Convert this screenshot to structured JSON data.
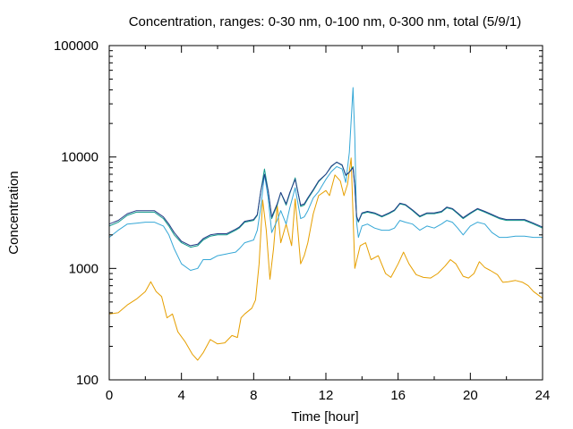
{
  "chart_data": {
    "type": "line",
    "title": "Concentration, ranges: 0-30 nm, 0-100 nm, 0-300 nm, total (5/9/1)",
    "xlabel": "Time [hour]",
    "ylabel": "Concentration",
    "xlim": [
      0,
      24
    ],
    "ylim": [
      100,
      100000
    ],
    "yscale": "log",
    "grid": false,
    "legend": "none",
    "x_ticks": [
      0,
      4,
      8,
      12,
      16,
      20,
      24
    ],
    "x_tick_labels": [
      "0",
      "4",
      "8",
      "12",
      "16",
      "20",
      "24"
    ],
    "y_ticks": [
      100,
      1000,
      10000,
      100000
    ],
    "y_tick_labels": [
      "100",
      "1000",
      "10000",
      "100000"
    ],
    "series": [
      {
        "color": "#e69f00",
        "points": [
          [
            0,
            390
          ],
          [
            0.5,
            400
          ],
          [
            1,
            470
          ],
          [
            1.5,
            530
          ],
          [
            2,
            620
          ],
          [
            2.3,
            760
          ],
          [
            2.6,
            620
          ],
          [
            2.9,
            560
          ],
          [
            3.2,
            360
          ],
          [
            3.5,
            390
          ],
          [
            3.8,
            270
          ],
          [
            4.2,
            220
          ],
          [
            4.6,
            170
          ],
          [
            4.9,
            150
          ],
          [
            5.2,
            175
          ],
          [
            5.6,
            230
          ],
          [
            6,
            210
          ],
          [
            6.4,
            215
          ],
          [
            6.8,
            250
          ],
          [
            7.1,
            240
          ],
          [
            7.3,
            360
          ],
          [
            7.5,
            390
          ],
          [
            7.9,
            440
          ],
          [
            8.1,
            520
          ],
          [
            8.3,
            1100
          ],
          [
            8.5,
            4100
          ],
          [
            8.7,
            2200
          ],
          [
            8.9,
            800
          ],
          [
            9.1,
            1500
          ],
          [
            9.3,
            3700
          ],
          [
            9.5,
            1700
          ],
          [
            9.8,
            2500
          ],
          [
            10.1,
            1600
          ],
          [
            10.3,
            4200
          ],
          [
            10.6,
            1100
          ],
          [
            10.8,
            1300
          ],
          [
            11,
            1700
          ],
          [
            11.3,
            3100
          ],
          [
            11.6,
            4500
          ],
          [
            12,
            5000
          ],
          [
            12.2,
            4500
          ],
          [
            12.5,
            6900
          ],
          [
            12.8,
            6100
          ],
          [
            13,
            4500
          ],
          [
            13.2,
            5700
          ],
          [
            13.4,
            9800
          ],
          [
            13.6,
            1000
          ],
          [
            13.9,
            1600
          ],
          [
            14.2,
            1700
          ],
          [
            14.5,
            1200
          ],
          [
            14.9,
            1300
          ],
          [
            15.3,
            900
          ],
          [
            15.6,
            830
          ],
          [
            16,
            1100
          ],
          [
            16.3,
            1400
          ],
          [
            16.6,
            1100
          ],
          [
            17,
            880
          ],
          [
            17.4,
            830
          ],
          [
            17.8,
            820
          ],
          [
            18.2,
            900
          ],
          [
            18.6,
            1050
          ],
          [
            18.9,
            1200
          ],
          [
            19.2,
            1100
          ],
          [
            19.6,
            850
          ],
          [
            19.9,
            820
          ],
          [
            20.2,
            900
          ],
          [
            20.5,
            1150
          ],
          [
            20.8,
            1020
          ],
          [
            21.1,
            960
          ],
          [
            21.5,
            880
          ],
          [
            21.8,
            750
          ],
          [
            22.1,
            760
          ],
          [
            22.5,
            780
          ],
          [
            22.9,
            750
          ],
          [
            23.2,
            700
          ],
          [
            23.5,
            620
          ],
          [
            24,
            540
          ]
        ]
      },
      {
        "color": "#35a7d6",
        "points": [
          [
            0,
            1900
          ],
          [
            0.5,
            2200
          ],
          [
            1,
            2500
          ],
          [
            1.5,
            2550
          ],
          [
            2,
            2600
          ],
          [
            2.5,
            2600
          ],
          [
            3,
            2400
          ],
          [
            3.3,
            2000
          ],
          [
            3.6,
            1500
          ],
          [
            4,
            1100
          ],
          [
            4.5,
            960
          ],
          [
            4.9,
            1000
          ],
          [
            5.2,
            1200
          ],
          [
            5.6,
            1200
          ],
          [
            6,
            1300
          ],
          [
            6.5,
            1350
          ],
          [
            7,
            1400
          ],
          [
            7.2,
            1500
          ],
          [
            7.5,
            1700
          ],
          [
            8,
            1800
          ],
          [
            8.2,
            2200
          ],
          [
            8.4,
            3600
          ],
          [
            8.6,
            7000
          ],
          [
            8.8,
            4300
          ],
          [
            9,
            2100
          ],
          [
            9.3,
            2700
          ],
          [
            9.5,
            3300
          ],
          [
            9.8,
            2500
          ],
          [
            10,
            3500
          ],
          [
            10.3,
            5300
          ],
          [
            10.6,
            2800
          ],
          [
            10.8,
            2900
          ],
          [
            11,
            3300
          ],
          [
            11.3,
            4300
          ],
          [
            11.6,
            4900
          ],
          [
            12,
            6300
          ],
          [
            12.3,
            7400
          ],
          [
            12.6,
            8200
          ],
          [
            12.9,
            7800
          ],
          [
            13.1,
            5900
          ],
          [
            13.3,
            11000
          ],
          [
            13.5,
            42000
          ],
          [
            13.6,
            15000
          ],
          [
            13.7,
            2600
          ],
          [
            13.8,
            1900
          ],
          [
            14,
            2400
          ],
          [
            14.3,
            2500
          ],
          [
            14.7,
            2300
          ],
          [
            15.1,
            2200
          ],
          [
            15.5,
            2200
          ],
          [
            15.8,
            2300
          ],
          [
            16.1,
            2700
          ],
          [
            16.4,
            2600
          ],
          [
            16.8,
            2500
          ],
          [
            17.2,
            2200
          ],
          [
            17.6,
            2400
          ],
          [
            18,
            2300
          ],
          [
            18.4,
            2500
          ],
          [
            18.7,
            2700
          ],
          [
            19,
            2600
          ],
          [
            19.3,
            2300
          ],
          [
            19.6,
            2000
          ],
          [
            20,
            2400
          ],
          [
            20.4,
            2600
          ],
          [
            20.8,
            2500
          ],
          [
            21.2,
            2100
          ],
          [
            21.6,
            1900
          ],
          [
            22,
            1900
          ],
          [
            22.5,
            1950
          ],
          [
            23,
            1950
          ],
          [
            23.5,
            1900
          ],
          [
            24,
            1900
          ]
        ]
      },
      {
        "color": "#109a8c",
        "points": [
          [
            0,
            2400
          ],
          [
            0.5,
            2600
          ],
          [
            1,
            3000
          ],
          [
            1.5,
            3200
          ],
          [
            2,
            3200
          ],
          [
            2.5,
            3200
          ],
          [
            3,
            2800
          ],
          [
            3.3,
            2400
          ],
          [
            3.6,
            2000
          ],
          [
            4,
            1700
          ],
          [
            4.5,
            1550
          ],
          [
            4.9,
            1600
          ],
          [
            5.2,
            1800
          ],
          [
            5.6,
            1950
          ],
          [
            6,
            2000
          ],
          [
            6.5,
            2000
          ],
          [
            7,
            2200
          ],
          [
            7.2,
            2300
          ],
          [
            7.5,
            2600
          ],
          [
            8,
            2700
          ],
          [
            8.2,
            3000
          ],
          [
            8.4,
            5000
          ],
          [
            8.6,
            7800
          ],
          [
            8.8,
            5000
          ],
          [
            9,
            2800
          ],
          [
            9.3,
            3700
          ],
          [
            9.5,
            4800
          ],
          [
            9.8,
            3700
          ],
          [
            10,
            4700
          ],
          [
            10.3,
            6500
          ],
          [
            10.6,
            3600
          ],
          [
            10.8,
            3700
          ],
          [
            11,
            4200
          ],
          [
            11.3,
            5000
          ],
          [
            11.6,
            6000
          ],
          [
            12,
            7000
          ],
          [
            12.3,
            8200
          ],
          [
            12.6,
            9000
          ],
          [
            12.9,
            8400
          ],
          [
            13.1,
            6800
          ],
          [
            13.3,
            7300
          ],
          [
            13.5,
            8200
          ],
          [
            13.6,
            5500
          ],
          [
            13.7,
            2900
          ],
          [
            13.8,
            2600
          ],
          [
            14,
            3100
          ],
          [
            14.3,
            3200
          ],
          [
            14.7,
            3100
          ],
          [
            15.1,
            2900
          ],
          [
            15.5,
            3100
          ],
          [
            15.8,
            3300
          ],
          [
            16.1,
            3800
          ],
          [
            16.4,
            3700
          ],
          [
            16.8,
            3300
          ],
          [
            17.2,
            2900
          ],
          [
            17.6,
            3100
          ],
          [
            18,
            3100
          ],
          [
            18.4,
            3200
          ],
          [
            18.7,
            3500
          ],
          [
            19,
            3400
          ],
          [
            19.3,
            3100
          ],
          [
            19.6,
            2800
          ],
          [
            20,
            3100
          ],
          [
            20.4,
            3400
          ],
          [
            20.8,
            3200
          ],
          [
            21.2,
            3000
          ],
          [
            21.6,
            2800
          ],
          [
            22,
            2700
          ],
          [
            22.5,
            2700
          ],
          [
            23,
            2700
          ],
          [
            23.5,
            2500
          ],
          [
            24,
            2300
          ]
        ]
      },
      {
        "color": "#253d87",
        "points": [
          [
            0,
            2500
          ],
          [
            0.5,
            2700
          ],
          [
            1,
            3100
          ],
          [
            1.5,
            3300
          ],
          [
            2,
            3300
          ],
          [
            2.5,
            3300
          ],
          [
            3,
            2900
          ],
          [
            3.3,
            2500
          ],
          [
            3.6,
            2100
          ],
          [
            4,
            1750
          ],
          [
            4.5,
            1600
          ],
          [
            4.9,
            1650
          ],
          [
            5.2,
            1850
          ],
          [
            5.6,
            2000
          ],
          [
            6,
            2050
          ],
          [
            6.5,
            2050
          ],
          [
            7,
            2250
          ],
          [
            7.2,
            2350
          ],
          [
            7.5,
            2650
          ],
          [
            8,
            2750
          ],
          [
            8.2,
            3050
          ],
          [
            8.4,
            5000
          ],
          [
            8.6,
            7000
          ],
          [
            8.8,
            5000
          ],
          [
            9,
            2900
          ],
          [
            9.3,
            3800
          ],
          [
            9.5,
            4800
          ],
          [
            9.8,
            3800
          ],
          [
            10,
            4800
          ],
          [
            10.3,
            6300
          ],
          [
            10.6,
            3700
          ],
          [
            10.8,
            3800
          ],
          [
            11,
            4300
          ],
          [
            11.3,
            5100
          ],
          [
            11.6,
            6100
          ],
          [
            12,
            7000
          ],
          [
            12.3,
            8300
          ],
          [
            12.6,
            9000
          ],
          [
            12.9,
            8500
          ],
          [
            13.1,
            6900
          ],
          [
            13.3,
            7300
          ],
          [
            13.5,
            8000
          ],
          [
            13.6,
            5400
          ],
          [
            13.7,
            2950
          ],
          [
            13.8,
            2650
          ],
          [
            14,
            3150
          ],
          [
            14.3,
            3250
          ],
          [
            14.7,
            3150
          ],
          [
            15.1,
            2950
          ],
          [
            15.5,
            3150
          ],
          [
            15.8,
            3350
          ],
          [
            16.1,
            3850
          ],
          [
            16.4,
            3750
          ],
          [
            16.8,
            3350
          ],
          [
            17.2,
            2950
          ],
          [
            17.6,
            3150
          ],
          [
            18,
            3150
          ],
          [
            18.4,
            3250
          ],
          [
            18.7,
            3550
          ],
          [
            19,
            3450
          ],
          [
            19.3,
            3150
          ],
          [
            19.6,
            2850
          ],
          [
            20,
            3150
          ],
          [
            20.4,
            3450
          ],
          [
            20.8,
            3250
          ],
          [
            21.2,
            3050
          ],
          [
            21.6,
            2850
          ],
          [
            22,
            2750
          ],
          [
            22.5,
            2750
          ],
          [
            23,
            2750
          ],
          [
            23.5,
            2550
          ],
          [
            24,
            2350
          ]
        ]
      }
    ]
  }
}
